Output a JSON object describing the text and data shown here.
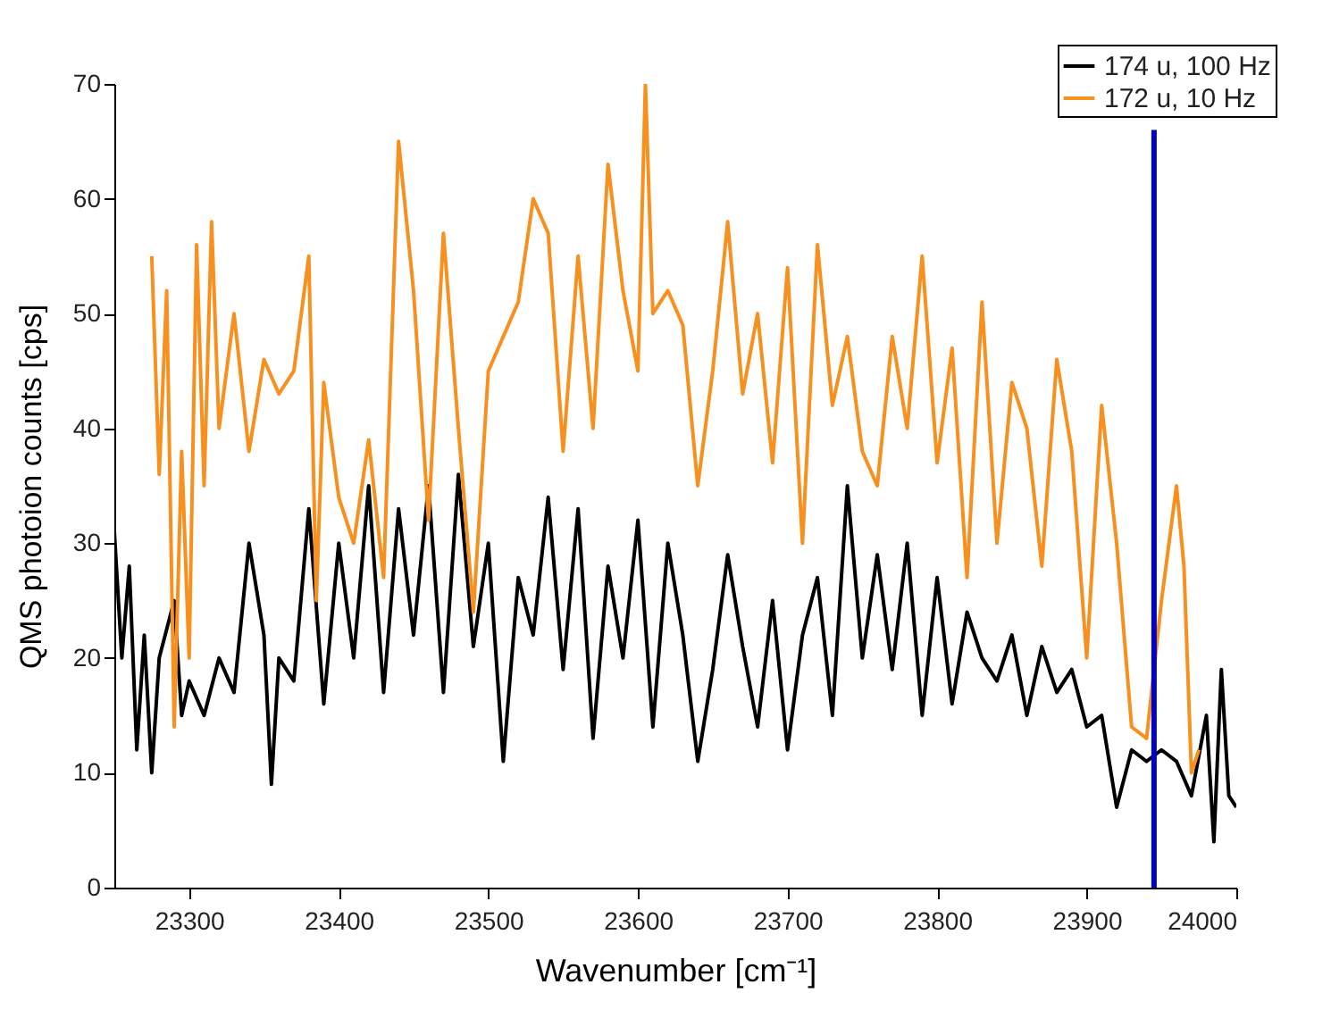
{
  "chart_data": {
    "type": "line",
    "xlabel": "Wavenumber [cm⁻¹]",
    "ylabel": "QMS photoion counts  [cps]",
    "xlim": [
      23250,
      24000
    ],
    "ylim": [
      0,
      70
    ],
    "xticks": [
      23300,
      23400,
      23500,
      23600,
      23700,
      23800,
      23900,
      24000
    ],
    "yticks": [
      0,
      10,
      20,
      30,
      40,
      50,
      60,
      70
    ],
    "legend": "top right",
    "grid": false,
    "line_style": "solid",
    "series": [
      {
        "name": "174 u, 100 Hz",
        "color": "#000000",
        "x": [
          23250,
          23255,
          23260,
          23265,
          23270,
          23275,
          23280,
          23290,
          23295,
          23300,
          23310,
          23320,
          23330,
          23340,
          23350,
          23355,
          23360,
          23370,
          23380,
          23390,
          23400,
          23410,
          23420,
          23430,
          23440,
          23450,
          23460,
          23470,
          23480,
          23490,
          23500,
          23510,
          23520,
          23530,
          23540,
          23550,
          23560,
          23570,
          23580,
          23590,
          23600,
          23610,
          23620,
          23630,
          23640,
          23650,
          23660,
          23670,
          23680,
          23690,
          23700,
          23710,
          23720,
          23730,
          23740,
          23750,
          23760,
          23770,
          23780,
          23790,
          23800,
          23810,
          23820,
          23830,
          23840,
          23850,
          23860,
          23870,
          23880,
          23890,
          23900,
          23910,
          23920,
          23930,
          23940,
          23950,
          23960,
          23970,
          23980,
          23985,
          23990,
          23995,
          24000
        ],
        "values": [
          31,
          20,
          28,
          12,
          22,
          10,
          20,
          25,
          15,
          18,
          15,
          20,
          17,
          30,
          22,
          9,
          20,
          18,
          33,
          16,
          30,
          20,
          35,
          17,
          33,
          22,
          35,
          17,
          36,
          21,
          30,
          11,
          27,
          22,
          34,
          19,
          33,
          13,
          28,
          20,
          32,
          14,
          30,
          22,
          11,
          19,
          29,
          21,
          14,
          25,
          12,
          22,
          27,
          15,
          35,
          20,
          29,
          19,
          30,
          15,
          27,
          16,
          24,
          20,
          18,
          22,
          15,
          21,
          17,
          19,
          14,
          15,
          7,
          12,
          11,
          12,
          11,
          8,
          15,
          4,
          19,
          8,
          7
        ]
      },
      {
        "name": "172 u, 10 Hz",
        "color": "#f7901e",
        "x": [
          23275,
          23280,
          23285,
          23290,
          23295,
          23300,
          23305,
          23310,
          23315,
          23320,
          23330,
          23340,
          23350,
          23360,
          23370,
          23380,
          23385,
          23390,
          23400,
          23410,
          23420,
          23430,
          23440,
          23450,
          23460,
          23470,
          23480,
          23490,
          23500,
          23510,
          23520,
          23530,
          23540,
          23550,
          23560,
          23570,
          23580,
          23590,
          23600,
          23605,
          23610,
          23620,
          23630,
          23640,
          23650,
          23660,
          23670,
          23680,
          23690,
          23700,
          23710,
          23720,
          23730,
          23740,
          23750,
          23760,
          23770,
          23780,
          23790,
          23800,
          23810,
          23820,
          23830,
          23840,
          23850,
          23860,
          23870,
          23880,
          23890,
          23900,
          23910,
          23920,
          23930,
          23940,
          23950,
          23960,
          23965,
          23970,
          23975
        ],
        "values": [
          55,
          36,
          52,
          14,
          38,
          20,
          56,
          35,
          58,
          40,
          50,
          38,
          46,
          43,
          45,
          55,
          25,
          44,
          34,
          30,
          39,
          27,
          65,
          52,
          32,
          57,
          40,
          24,
          45,
          48,
          51,
          60,
          57,
          38,
          55,
          40,
          63,
          52,
          45,
          70,
          50,
          52,
          49,
          35,
          45,
          58,
          43,
          50,
          37,
          54,
          30,
          56,
          42,
          48,
          38,
          35,
          48,
          40,
          55,
          37,
          47,
          27,
          51,
          30,
          44,
          40,
          28,
          46,
          38,
          20,
          42,
          30,
          14,
          13,
          25,
          35,
          28,
          10,
          12
        ]
      },
      {
        "color": "#0000cc",
        "x": [
          23945,
          23945
        ],
        "values": [
          0,
          66
        ]
      }
    ]
  }
}
